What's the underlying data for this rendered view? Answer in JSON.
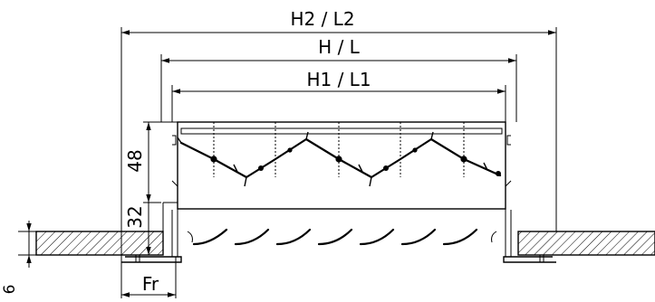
{
  "dimensions": {
    "outer_width": "H2 / L2",
    "nominal_width": "H / L",
    "inner_width": "H1 / L1",
    "height_main": "48",
    "height_lower": "32",
    "frame_width": "Fr",
    "ceiling_thickness": "6"
  }
}
